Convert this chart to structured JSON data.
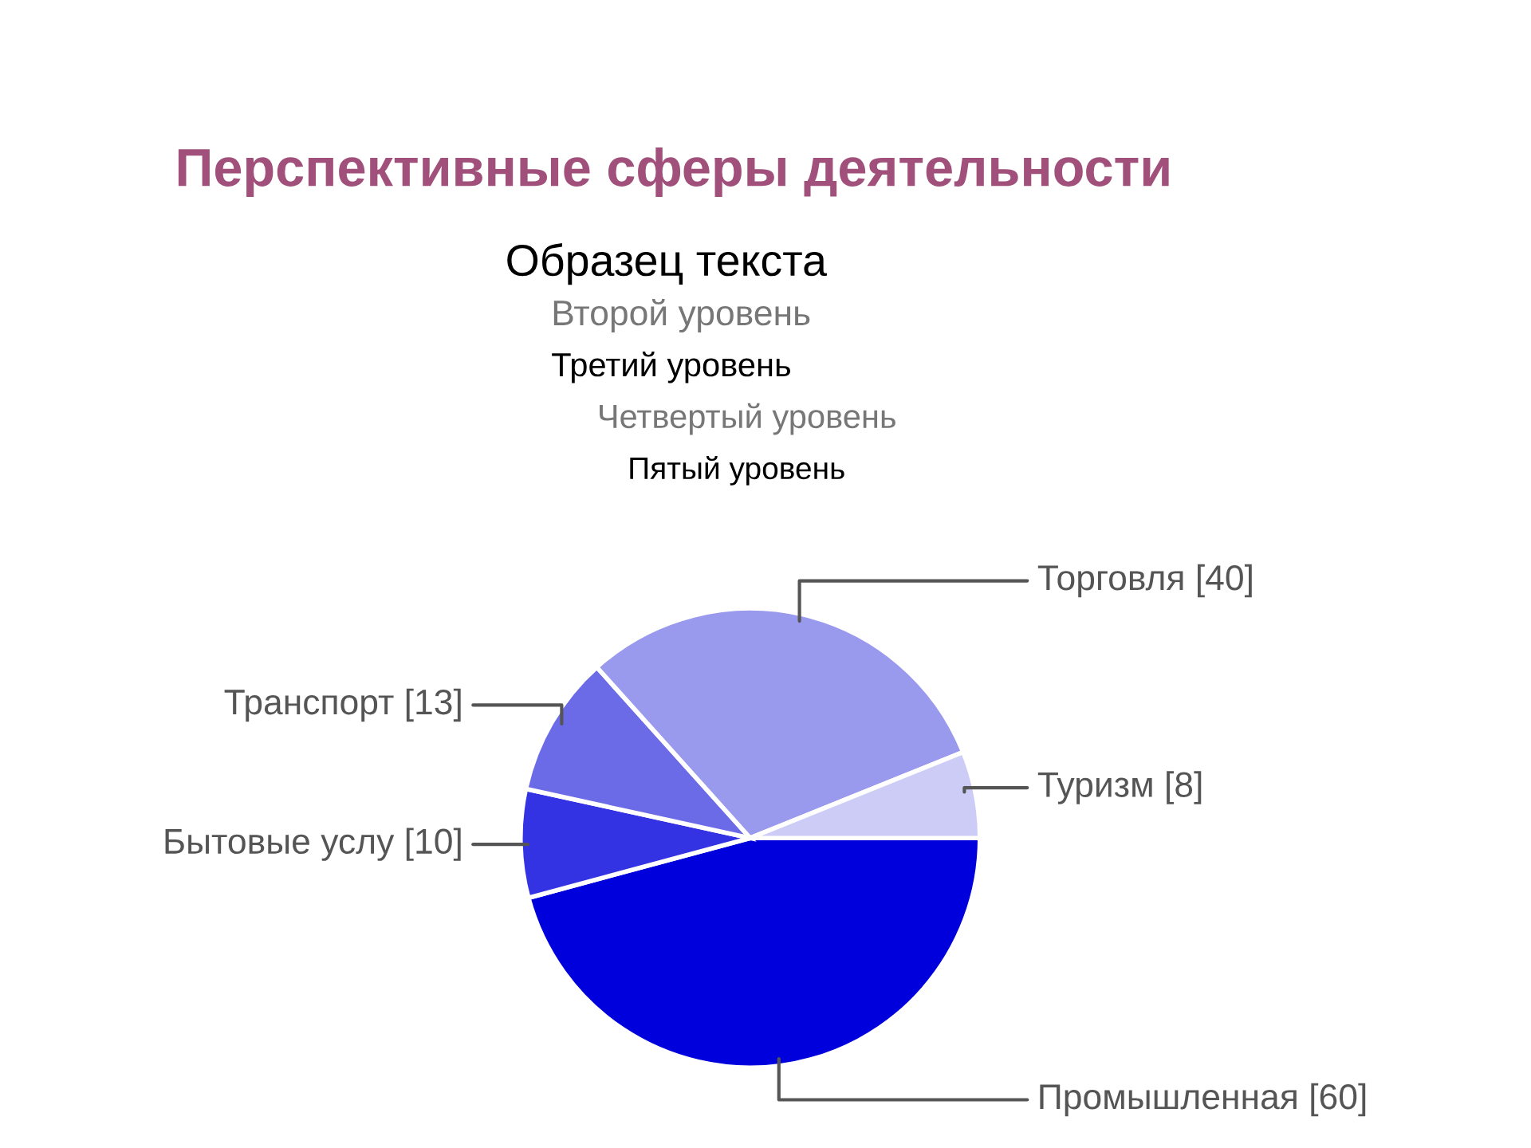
{
  "chart_data": {
    "type": "pie",
    "title": "Перспективные сферы деятельности",
    "categories": [
      "Промышленная [60]",
      "Бытовые услу [10]",
      "Транспорт [13]",
      "Торговля [40]",
      "Туризм [8]"
    ],
    "values": [
      60,
      10,
      13,
      40,
      8
    ],
    "colors": [
      "#0000dd",
      "#3333e3",
      "#6b6be8",
      "#9999ee",
      "#ccccf7"
    ],
    "annotations": [
      "Образец текста",
      "Второй уровень",
      "Третий уровень",
      "Четвертый уровень",
      "Пятый уровень"
    ]
  }
}
